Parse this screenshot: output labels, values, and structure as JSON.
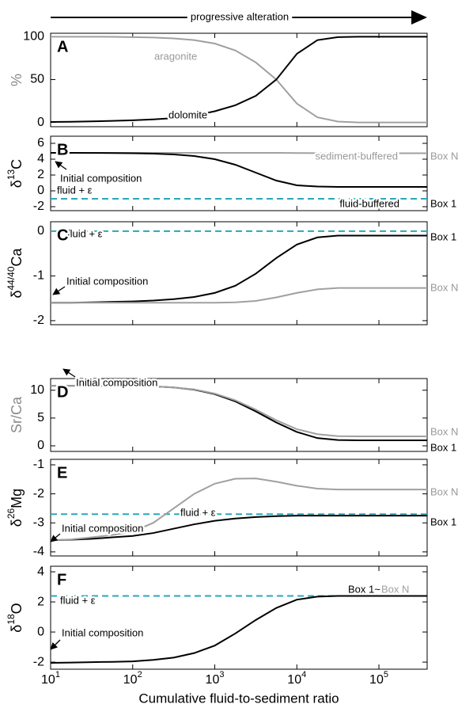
{
  "chart_data": [
    {
      "type": "line",
      "title": "progressive alteration",
      "label": "A",
      "ylabel": "%",
      "ylabel_color": "#8a8a8a",
      "xscale": "log",
      "xlim": [
        10,
        387000
      ],
      "xticks": [
        10,
        100,
        1000,
        10000,
        100000
      ],
      "ylim": [
        -5,
        104
      ],
      "yticks": [
        0,
        50,
        100
      ],
      "x": [
        10,
        17.8,
        31.6,
        56.2,
        100,
        178,
        316,
        562,
        1000,
        1778,
        3162,
        5623,
        10000,
        17783,
        31623,
        56234,
        100000,
        177828,
        316228,
        387000
      ],
      "series": [
        {
          "name": "aragonite",
          "color": "#a0a0a0",
          "values": [
            100,
            100,
            100,
            99.8,
            99.5,
            99,
            98,
            96,
            92,
            84,
            70,
            50,
            22,
            6,
            1,
            0,
            0,
            0,
            0,
            0
          ]
        },
        {
          "name": "dolomite",
          "color": "#000000",
          "values": [
            0.5,
            0.8,
            1.2,
            1.8,
            2.5,
            3.5,
            5,
            8,
            13,
            20,
            31,
            50,
            80,
            96,
            99.5,
            100,
            100,
            100,
            100,
            100
          ]
        }
      ]
    },
    {
      "type": "line",
      "label": "B",
      "ylabel": "δ",
      "ylabel_sup": "13",
      "ylabel_end": "C",
      "xscale": "log",
      "xlim": [
        10,
        387000
      ],
      "xticks": [
        10,
        100,
        1000,
        10000,
        100000
      ],
      "ylim": [
        -2.5,
        6.9
      ],
      "yticks": [
        6,
        4,
        2,
        0,
        -2
      ],
      "x": [
        10,
        17.8,
        31.6,
        56.2,
        100,
        178,
        316,
        562,
        1000,
        1778,
        3162,
        5623,
        10000,
        17783,
        31623,
        56234,
        100000,
        177828,
        316228,
        387000
      ],
      "series": [
        {
          "name": "sediment-buffered",
          "end_label": "Box N",
          "color": "#a0a0a0",
          "values": [
            4.8,
            4.8,
            4.8,
            4.8,
            4.8,
            4.8,
            4.8,
            4.8,
            4.8,
            4.8,
            4.8,
            4.8,
            4.78,
            4.76,
            4.75,
            4.75,
            4.75,
            4.75,
            4.75,
            4.75
          ]
        },
        {
          "name": "fluid-buffered",
          "end_label": "Box 1",
          "color": "#000000",
          "values": [
            4.8,
            4.8,
            4.79,
            4.78,
            4.75,
            4.7,
            4.6,
            4.4,
            4.0,
            3.3,
            2.3,
            1.3,
            0.7,
            0.55,
            0.5,
            0.5,
            0.5,
            0.5,
            0.5,
            0.5
          ]
        }
      ],
      "hlines": [
        {
          "value": -1,
          "label": "fluid + ε",
          "color": "#2aa8b8"
        }
      ],
      "annotations": [
        {
          "text": "Initial composition"
        }
      ]
    },
    {
      "type": "line",
      "label": "C",
      "ylabel": "δ",
      "ylabel_sup": "44/40",
      "ylabel_end": "Ca",
      "xscale": "log",
      "xlim": [
        10,
        387000
      ],
      "xticks": [
        10,
        100,
        1000,
        10000,
        100000
      ],
      "ylim": [
        -2.09,
        0.21
      ],
      "yticks": [
        0,
        -1,
        -2
      ],
      "x": [
        10,
        17.8,
        31.6,
        56.2,
        100,
        178,
        316,
        562,
        1000,
        1778,
        3162,
        5623,
        10000,
        17783,
        31623,
        56234,
        100000,
        177828,
        316228,
        387000
      ],
      "series": [
        {
          "name": "Box 1",
          "color": "#000000",
          "values": [
            -1.6,
            -1.6,
            -1.59,
            -1.58,
            -1.57,
            -1.55,
            -1.52,
            -1.47,
            -1.38,
            -1.22,
            -0.95,
            -0.6,
            -0.3,
            -0.14,
            -0.1,
            -0.1,
            -0.1,
            -0.1,
            -0.1,
            -0.1
          ]
        },
        {
          "name": "Box N",
          "color": "#a0a0a0",
          "values": [
            -1.6,
            -1.6,
            -1.6,
            -1.6,
            -1.6,
            -1.6,
            -1.6,
            -1.6,
            -1.6,
            -1.59,
            -1.56,
            -1.48,
            -1.38,
            -1.3,
            -1.27,
            -1.27,
            -1.27,
            -1.27,
            -1.27,
            -1.27
          ]
        }
      ],
      "hlines": [
        {
          "value": 0,
          "label": "fluid + ε",
          "color": "#2aa8b8"
        }
      ],
      "annotations": [
        {
          "text": "Initial composition"
        }
      ]
    },
    {
      "type": "line",
      "label": "D",
      "ylabel": "Sr/Ca",
      "ylabel_color": "#8a8a8a",
      "xscale": "log",
      "xlim": [
        10,
        387000
      ],
      "xticks": [
        10,
        100,
        1000,
        10000,
        100000
      ],
      "ylim": [
        -1,
        12.1
      ],
      "yticks": [
        10,
        5,
        0
      ],
      "x": [
        10,
        17.8,
        31.6,
        56.2,
        100,
        178,
        316,
        562,
        1000,
        1778,
        3162,
        5623,
        10000,
        17783,
        31623,
        56234,
        100000,
        177828,
        316228,
        387000
      ],
      "series": [
        {
          "name": "Box 1",
          "color": "#000000",
          "values": [
            10.8,
            10.8,
            10.8,
            10.78,
            10.75,
            10.7,
            10.5,
            10.1,
            9.3,
            8.0,
            6.2,
            4.2,
            2.5,
            1.4,
            1.05,
            1.0,
            1.0,
            1.0,
            1.0,
            1.0
          ]
        },
        {
          "name": "Box N",
          "color": "#a0a0a0",
          "values": [
            10.8,
            10.8,
            10.8,
            10.78,
            10.75,
            10.7,
            10.5,
            10.15,
            9.4,
            8.2,
            6.5,
            4.6,
            3.0,
            2.1,
            1.75,
            1.7,
            1.7,
            1.7,
            1.7,
            1.7
          ]
        }
      ],
      "annotations": [
        {
          "text": "Initial composition"
        }
      ]
    },
    {
      "type": "line",
      "label": "E",
      "ylabel": "δ",
      "ylabel_sup": "26",
      "ylabel_end": "Mg",
      "xscale": "log",
      "xlim": [
        10,
        387000
      ],
      "xticks": [
        10,
        100,
        1000,
        10000,
        100000
      ],
      "ylim": [
        -4.14,
        -0.81
      ],
      "yticks": [
        -1,
        -2,
        -3,
        -4
      ],
      "x": [
        10,
        17.8,
        31.6,
        56.2,
        100,
        178,
        316,
        562,
        1000,
        1778,
        3162,
        5623,
        10000,
        17783,
        31623,
        56234,
        100000,
        177828,
        316228,
        387000
      ],
      "series": [
        {
          "name": "Box 1",
          "color": "#000000",
          "values": [
            -3.6,
            -3.58,
            -3.55,
            -3.5,
            -3.45,
            -3.35,
            -3.2,
            -3.05,
            -2.93,
            -2.85,
            -2.8,
            -2.77,
            -2.75,
            -2.75,
            -2.75,
            -2.75,
            -2.75,
            -2.75,
            -2.75,
            -2.75
          ]
        },
        {
          "name": "Box N",
          "color": "#a0a0a0",
          "values": [
            -3.6,
            -3.57,
            -3.5,
            -3.42,
            -3.3,
            -3.0,
            -2.5,
            -2.0,
            -1.65,
            -1.48,
            -1.47,
            -1.58,
            -1.72,
            -1.82,
            -1.85,
            -1.85,
            -1.85,
            -1.85,
            -1.85,
            -1.85
          ]
        }
      ],
      "hlines": [
        {
          "value": -2.7,
          "label": "fluid + ε",
          "color": "#2aa8b8"
        }
      ],
      "annotations": [
        {
          "text": "Initial composition"
        }
      ]
    },
    {
      "type": "line",
      "label": "F",
      "ylabel": "δ",
      "ylabel_sup": "18",
      "ylabel_end": "O",
      "xlabel": "Cumulative fluid-to-sediment ratio",
      "xscale": "log",
      "xlim": [
        10,
        387000
      ],
      "xticks": [
        {
          "value": 10,
          "label": "10",
          "sup": "1"
        },
        {
          "value": 100,
          "label": "10",
          "sup": "2"
        },
        {
          "value": 1000,
          "label": "10",
          "sup": "3"
        },
        {
          "value": 10000,
          "label": "10",
          "sup": "4"
        },
        {
          "value": 100000,
          "label": "10",
          "sup": "5"
        }
      ],
      "ylim": [
        -2.47,
        4.37
      ],
      "yticks": [
        4,
        2,
        0,
        -2
      ],
      "x": [
        10,
        17.8,
        31.6,
        56.2,
        100,
        178,
        316,
        562,
        1000,
        1778,
        3162,
        5623,
        10000,
        17783,
        31623,
        56234,
        100000,
        177828,
        316228,
        387000
      ],
      "series": [
        {
          "name": "Box 1~",
          "color": "#000000",
          "values": [
            -2.05,
            -2.03,
            -2.0,
            -1.98,
            -1.95,
            -1.85,
            -1.7,
            -1.4,
            -0.9,
            -0.1,
            0.8,
            1.6,
            2.15,
            2.35,
            2.4,
            2.4,
            2.4,
            2.4,
            2.4,
            2.4
          ]
        }
      ],
      "hlines": [
        {
          "value": 2.4,
          "label": "fluid + ε",
          "color": "#2aa8b8"
        }
      ],
      "annotations": [
        {
          "text": "Initial composition"
        },
        {
          "text": "Box N",
          "color": "#a0a0a0"
        }
      ]
    }
  ]
}
